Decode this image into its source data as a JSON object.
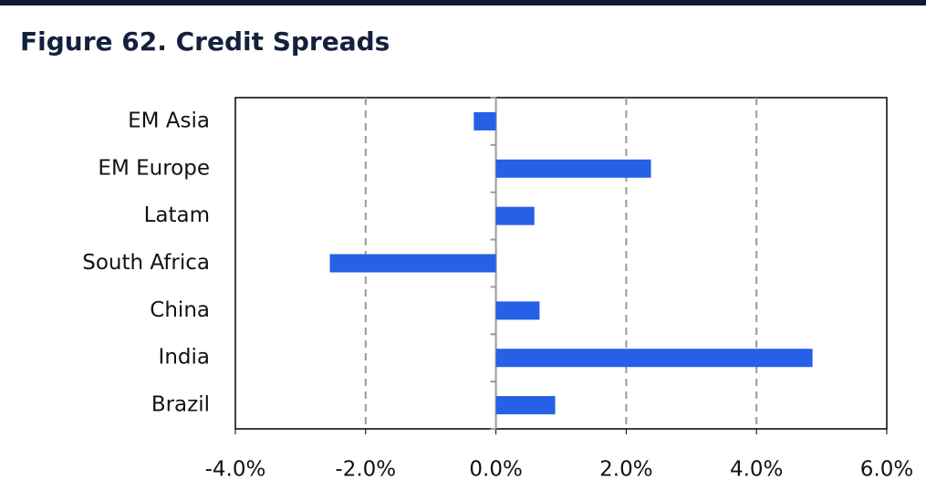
{
  "chart_data": {
    "type": "hbar",
    "title": "Figure 62. Credit Spreads",
    "categories": [
      "EM Asia",
      "EM Europe",
      "Latam",
      "South Africa",
      "China",
      "India",
      "Brazil"
    ],
    "values": [
      -0.34,
      2.38,
      0.59,
      -2.55,
      0.67,
      4.86,
      0.91
    ],
    "color": "#2560e6",
    "xlim": [
      -4,
      6
    ],
    "xticks": [
      {
        "value": -4,
        "label": "-4.0%"
      },
      {
        "value": -2,
        "label": "-2.0%"
      },
      {
        "value": 0,
        "label": "0.0%"
      },
      {
        "value": 2,
        "label": "2.0%"
      },
      {
        "value": 4,
        "label": "4.0%"
      },
      {
        "value": 6,
        "label": "6.0%"
      }
    ],
    "grid": true
  }
}
